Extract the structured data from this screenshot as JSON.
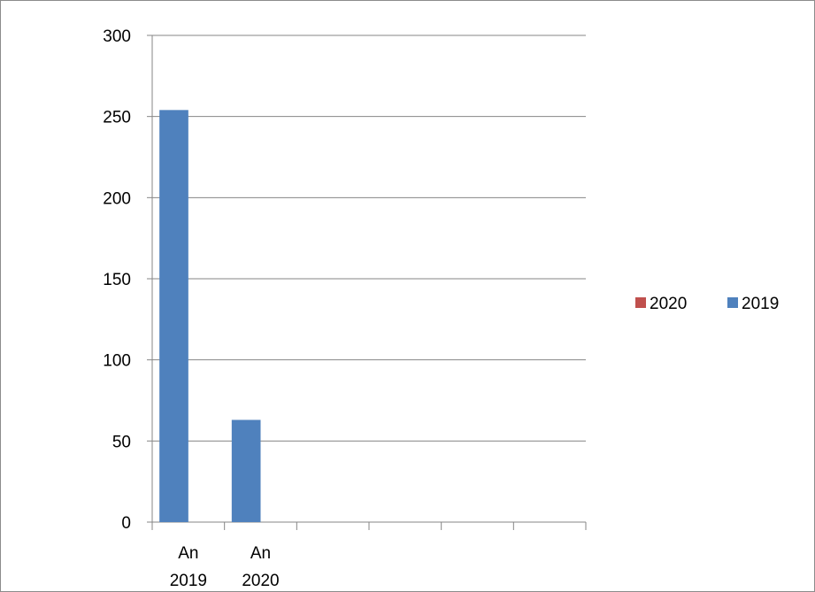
{
  "chart_data": {
    "type": "bar",
    "title": "",
    "xlabel": "",
    "ylabel": "",
    "categories": [
      [
        "An",
        "2019"
      ],
      [
        "An",
        "2020"
      ],
      "",
      "",
      "",
      ""
    ],
    "series": [
      {
        "name": "2019",
        "color": "#4f81bd",
        "values": [
          254,
          63,
          null,
          null,
          null,
          null
        ]
      },
      {
        "name": "2020",
        "color": "#c0504d",
        "values": [
          null,
          null,
          null,
          null,
          null,
          null
        ]
      }
    ],
    "ylim": [
      0,
      300
    ],
    "yticks": [
      0,
      50,
      100,
      150,
      200,
      250,
      300
    ],
    "grid": true,
    "legend": {
      "placement": "right",
      "order": [
        "2020",
        "2019"
      ]
    }
  }
}
